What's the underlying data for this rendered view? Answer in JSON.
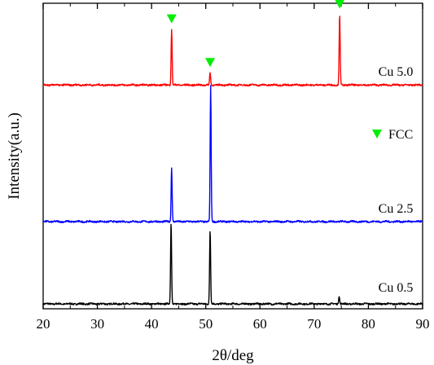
{
  "chart_data": {
    "type": "line",
    "xlabel": "2θ/deg",
    "ylabel": "Intensity(a.u.)",
    "xlim": [
      20,
      90
    ],
    "x_ticks": [
      20,
      30,
      40,
      50,
      60,
      70,
      80,
      90
    ],
    "y_ticks_shown": false,
    "grid": false,
    "legend": {
      "placement": "right",
      "entries": [
        {
          "marker": "down-triangle",
          "color": "#00ee00",
          "label": "FCC"
        }
      ]
    },
    "series": [
      {
        "name": "Cu 0.5",
        "color": "#000000",
        "baseline": 0.0,
        "noise": 0.01,
        "peaks": [
          {
            "x": 43.6,
            "intensity": 1.0
          },
          {
            "x": 50.8,
            "intensity": 0.9
          },
          {
            "x": 74.6,
            "intensity": 0.1
          }
        ]
      },
      {
        "name": "Cu 2.5",
        "color": "#0000ff",
        "baseline": 1.0,
        "noise": 0.01,
        "peaks": [
          {
            "x": 43.7,
            "intensity": 0.66
          },
          {
            "x": 50.9,
            "intensity": 1.64
          }
        ]
      },
      {
        "name": "Cu 5.0",
        "color": "#ff0000",
        "baseline": 2.66,
        "noise": 0.01,
        "peaks": [
          {
            "x": 43.7,
            "intensity": 0.68
          },
          {
            "x": 50.8,
            "intensity": 0.15
          },
          {
            "x": 74.7,
            "intensity": 0.86
          }
        ]
      }
    ],
    "annotations": [
      {
        "type": "FCC marker",
        "series": "Cu 5.0",
        "x": 43.7
      },
      {
        "type": "FCC marker",
        "series": "Cu 5.0",
        "x": 50.8
      },
      {
        "type": "FCC marker",
        "series": "Cu 5.0",
        "x": 74.7
      }
    ]
  }
}
